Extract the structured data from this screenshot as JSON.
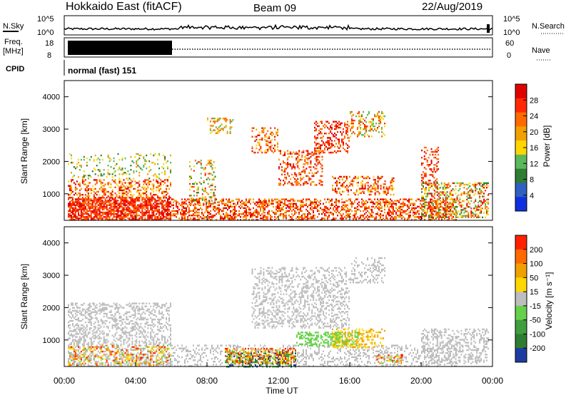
{
  "header": {
    "title": "Hokkaido East (fitACF)",
    "beam": "Beam 09",
    "date": "22/Aug/2019"
  },
  "top_panels": {
    "nsky_label": "N.Sky",
    "nsearch_label": "N.Search",
    "nsky_ticks": [
      "10^5",
      "10^0"
    ],
    "nsearch_ticks": [
      "10^5",
      "10^0"
    ],
    "freq_label_1": "Freq.",
    "freq_label_2": "[MHz]",
    "freq_ticks": [
      "18",
      "8"
    ],
    "nave_label": "Nave",
    "nave_ticks": [
      "60",
      "0"
    ],
    "cpid_label": "CPID",
    "cpid_value": "normal (fast) 151"
  },
  "colors": {
    "power": [
      "#1030e0",
      "#3060c0",
      "#2e7d32",
      "#5cb85c",
      "#ffd700",
      "#f0a000",
      "#ff6a00",
      "#ff2a00",
      "#e00000"
    ],
    "velocity": [
      "#1e3ca0",
      "#2e7d32",
      "#3f9e3f",
      "#66d04a",
      "#bdbdbd",
      "#ffd700",
      "#f0a000",
      "#ff6a00",
      "#ff2000"
    ]
  },
  "chart_data": [
    {
      "type": "heatmap",
      "name": "power",
      "ylabel": "Slant Range [km]",
      "colorbar_label": "Power [dB]",
      "colorbar_ticks": [
        "28",
        "24",
        "20",
        "16",
        "12",
        "8",
        "4"
      ],
      "yticks": [
        "4000",
        "3000",
        "2000",
        "1000"
      ],
      "ylim": [
        180,
        4500
      ],
      "zlim": [
        0,
        30
      ]
    },
    {
      "type": "heatmap",
      "name": "velocity",
      "ylabel": "Slant Range [km]",
      "colorbar_label": "Velocity [m s⁻¹]",
      "colorbar_ticks": [
        "200",
        "100",
        "50",
        "15",
        "-15",
        "-50",
        "-100",
        "-200"
      ],
      "yticks": [
        "4000",
        "3000",
        "2000",
        "1000"
      ],
      "ylim": [
        180,
        4500
      ]
    }
  ],
  "xaxis": {
    "ticks": [
      "00:00",
      "04:00",
      "08:00",
      "12:00",
      "16:00",
      "20:00",
      "00:00"
    ],
    "label": "Time UT",
    "xlim": [
      0,
      24
    ]
  }
}
